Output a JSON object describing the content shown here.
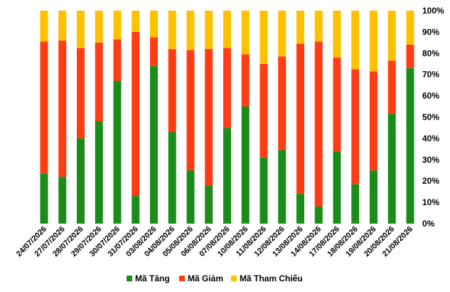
{
  "chart_data": {
    "type": "bar",
    "stacked": true,
    "percent_stacked": true,
    "categories": [
      "24/07/2026",
      "27/07/2026",
      "28/07/2026",
      "29/07/2026",
      "30/07/2026",
      "31/07/2026",
      "03/08/2026",
      "04/08/2026",
      "05/08/2026",
      "06/08/2026",
      "07/08/2026",
      "10/08/2026",
      "11/08/2026",
      "12/08/2026",
      "13/08/2026",
      "14/08/2026",
      "17/08/2026",
      "18/08/2026",
      "19/08/2026",
      "20/08/2026",
      "21/08/2026"
    ],
    "series": [
      {
        "name": "Mã Tăng",
        "color": "#1a8c1a",
        "values": [
          23.5,
          22,
          40,
          48,
          67,
          13,
          74,
          43,
          25,
          18,
          45,
          55,
          31,
          34.5,
          14,
          8,
          34,
          18.5,
          25,
          51.5,
          73
        ]
      },
      {
        "name": "Mã Giảm",
        "color": "#ff3c14",
        "values": [
          62,
          64,
          42.5,
          37,
          19.5,
          77,
          13.5,
          39,
          56.5,
          64,
          37.5,
          24.5,
          44,
          44,
          70.5,
          77.5,
          44,
          54,
          46.5,
          25,
          11
        ]
      },
      {
        "name": "Mã Tham Chiếu",
        "color": "#ffc000",
        "values": [
          14.5,
          14,
          17.5,
          15,
          13.5,
          10,
          12.5,
          18,
          18.5,
          18,
          17.5,
          20.5,
          25,
          21.5,
          15.5,
          14.5,
          22,
          27.5,
          28.5,
          23.5,
          16
        ]
      }
    ],
    "y_ticks": [
      "0%",
      "10%",
      "20%",
      "30%",
      "40%",
      "50%",
      "60%",
      "70%",
      "80%",
      "90%",
      "100%"
    ],
    "ylim": [
      0,
      100
    ],
    "y_axis_side": "right",
    "legend_position": "bottom",
    "grid": false
  }
}
